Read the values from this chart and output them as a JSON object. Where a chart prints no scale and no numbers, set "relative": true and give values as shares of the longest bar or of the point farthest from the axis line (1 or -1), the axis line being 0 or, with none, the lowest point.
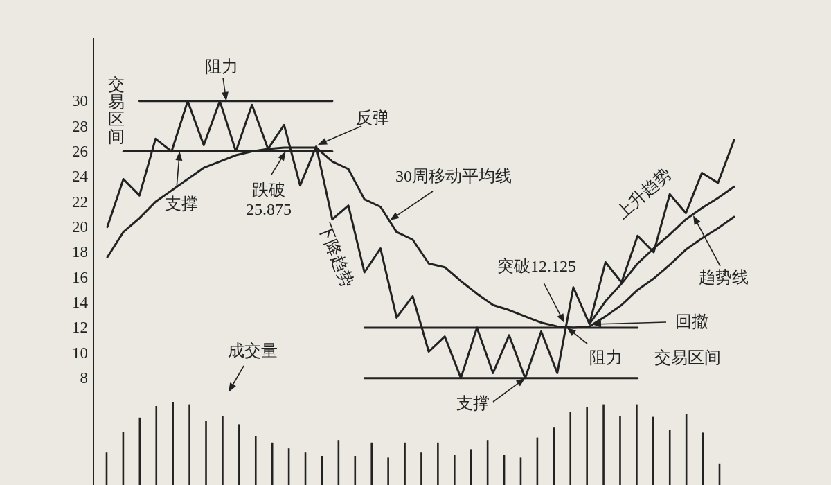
{
  "chart_data": [
    {
      "type": "line",
      "categories": [
        null,
        null,
        null,
        null,
        null,
        null,
        null,
        null,
        null,
        null,
        null,
        null,
        null,
        null,
        null,
        null,
        null,
        null,
        null,
        null,
        null,
        null,
        null,
        null,
        null,
        null,
        null,
        null,
        null,
        null,
        null,
        null,
        null,
        null,
        null,
        null,
        null,
        null,
        null,
        null
      ],
      "ylim": [
        6,
        35
      ],
      "yticks": [
        8,
        10,
        12,
        14,
        16,
        18,
        20,
        22,
        24,
        26,
        28,
        30
      ],
      "tick_labels": "y",
      "series": [
        {
          "color": "#222222",
          "values": [
            20,
            23.8,
            22.5,
            27,
            26,
            30,
            26.5,
            30,
            26,
            29.7,
            26.2,
            28.1,
            23.3,
            26.4,
            20.6,
            21.7,
            16.4,
            18.3,
            12.8,
            14.5,
            10.1,
            11.3,
            8,
            12,
            8.4,
            11.4,
            8,
            11.7,
            8.4,
            15.2,
            12.3,
            17.2,
            15.6,
            19.3,
            18,
            22.6,
            21.1,
            24.3,
            23.5,
            26.9
          ]
        },
        {
          "color": "#222222",
          "values": [
            17.6,
            19.6,
            20.7,
            22.0,
            22.9,
            23.8,
            24.7,
            25.2,
            25.7,
            26.0,
            26.2,
            26.3,
            26.3,
            26.3,
            25.2,
            24.6,
            22.2,
            21.6,
            19.6,
            19.0,
            17.1,
            16.8,
            15.7,
            14.7,
            13.8,
            13.4,
            12.9,
            12.4,
            12.1,
            12.0,
            12.1,
            12.9,
            13.8,
            15.0,
            15.9,
            17.0,
            18.2,
            19.1,
            19.9,
            20.8
          ]
        },
        {
          "color": "#222222",
          "values": [
            null,
            null,
            null,
            null,
            null,
            null,
            null,
            null,
            null,
            null,
            null,
            null,
            null,
            null,
            null,
            null,
            null,
            null,
            null,
            null,
            null,
            null,
            null,
            null,
            null,
            null,
            null,
            null,
            null,
            null,
            12.3,
            14.1,
            15.5,
            17.1,
            18.3,
            19.4,
            20.6,
            21.5,
            22.3,
            23.2
          ]
        },
        {
          "color": "#222222",
          "values": [
            null,
            null,
            30,
            30,
            30,
            30,
            30,
            30,
            30,
            30,
            30,
            30,
            30,
            30,
            30,
            null,
            null,
            null,
            null,
            null,
            null,
            null,
            null,
            null,
            null,
            null,
            null,
            null,
            null,
            null,
            null,
            null,
            null,
            null,
            null,
            null,
            null,
            null,
            null,
            null
          ]
        },
        {
          "color": "#222222",
          "values": [
            null,
            26,
            26,
            26,
            26,
            26,
            26,
            26,
            26,
            26,
            26,
            26,
            26,
            26,
            26,
            null,
            null,
            null,
            null,
            null,
            null,
            null,
            null,
            null,
            null,
            null,
            null,
            null,
            null,
            null,
            null,
            null,
            null,
            null,
            null,
            null,
            null,
            null,
            null,
            null
          ]
        },
        {
          "color": "#222222",
          "values": [
            null,
            null,
            null,
            null,
            null,
            null,
            null,
            null,
            null,
            null,
            null,
            null,
            null,
            null,
            null,
            null,
            12,
            12,
            12,
            12,
            12,
            12,
            12,
            12,
            12,
            12,
            12,
            12,
            12,
            12,
            12,
            12,
            12,
            12,
            null,
            null,
            null,
            null,
            null,
            null
          ]
        },
        {
          "color": "#222222",
          "values": [
            null,
            null,
            null,
            null,
            null,
            null,
            null,
            null,
            null,
            null,
            null,
            null,
            null,
            null,
            null,
            null,
            8,
            8,
            8,
            8,
            8,
            8,
            8,
            8,
            8,
            8,
            8,
            8,
            8,
            8,
            8,
            8,
            8,
            8,
            null,
            null,
            null,
            null,
            null,
            null
          ]
        }
      ],
      "annotations": [
        {
          "text": "阻力",
          "y": 30
        },
        "交易区间",
        {
          "text": "支撑",
          "y": 26
        },
        {
          "text": "跌破\n25.875",
          "y": 26
        },
        "反弹",
        "30周移动平均线",
        "下降趋势",
        "突破12.125",
        "回撤",
        {
          "text": "阻力",
          "y": 12
        },
        "交易区间",
        {
          "text": "支撑",
          "y": 8
        },
        "上升趋势",
        "趋势线"
      ]
    },
    {
      "type": "bar",
      "relative": true,
      "categories": [
        null,
        null,
        null,
        null,
        null,
        null,
        null,
        null,
        null,
        null,
        null,
        null,
        null,
        null,
        null,
        null,
        null,
        null,
        null,
        null,
        null,
        null,
        null,
        null,
        null,
        null,
        null,
        null,
        null,
        null,
        null,
        null,
        null,
        null,
        null,
        null,
        null,
        null
      ],
      "tick_labels": false,
      "series": [
        {
          "color": "#222222",
          "values": [
            0.39,
            0.64,
            0.81,
            0.95,
            1,
            0.97,
            0.77,
            0.83,
            0.73,
            0.59,
            0.51,
            0.44,
            0.39,
            0.35,
            0.54,
            0.35,
            0.51,
            0.33,
            0.51,
            0.39,
            0.51,
            0.36,
            0.43,
            0.54,
            0.36,
            0.33,
            0.57,
            0.69,
            0.88,
            0.94,
            0.97,
            0.83,
            0.97,
            0.82,
            0.66,
            0.85,
            0.63,
            0.26
          ]
        }
      ],
      "annotations": [
        "成交量"
      ]
    }
  ]
}
